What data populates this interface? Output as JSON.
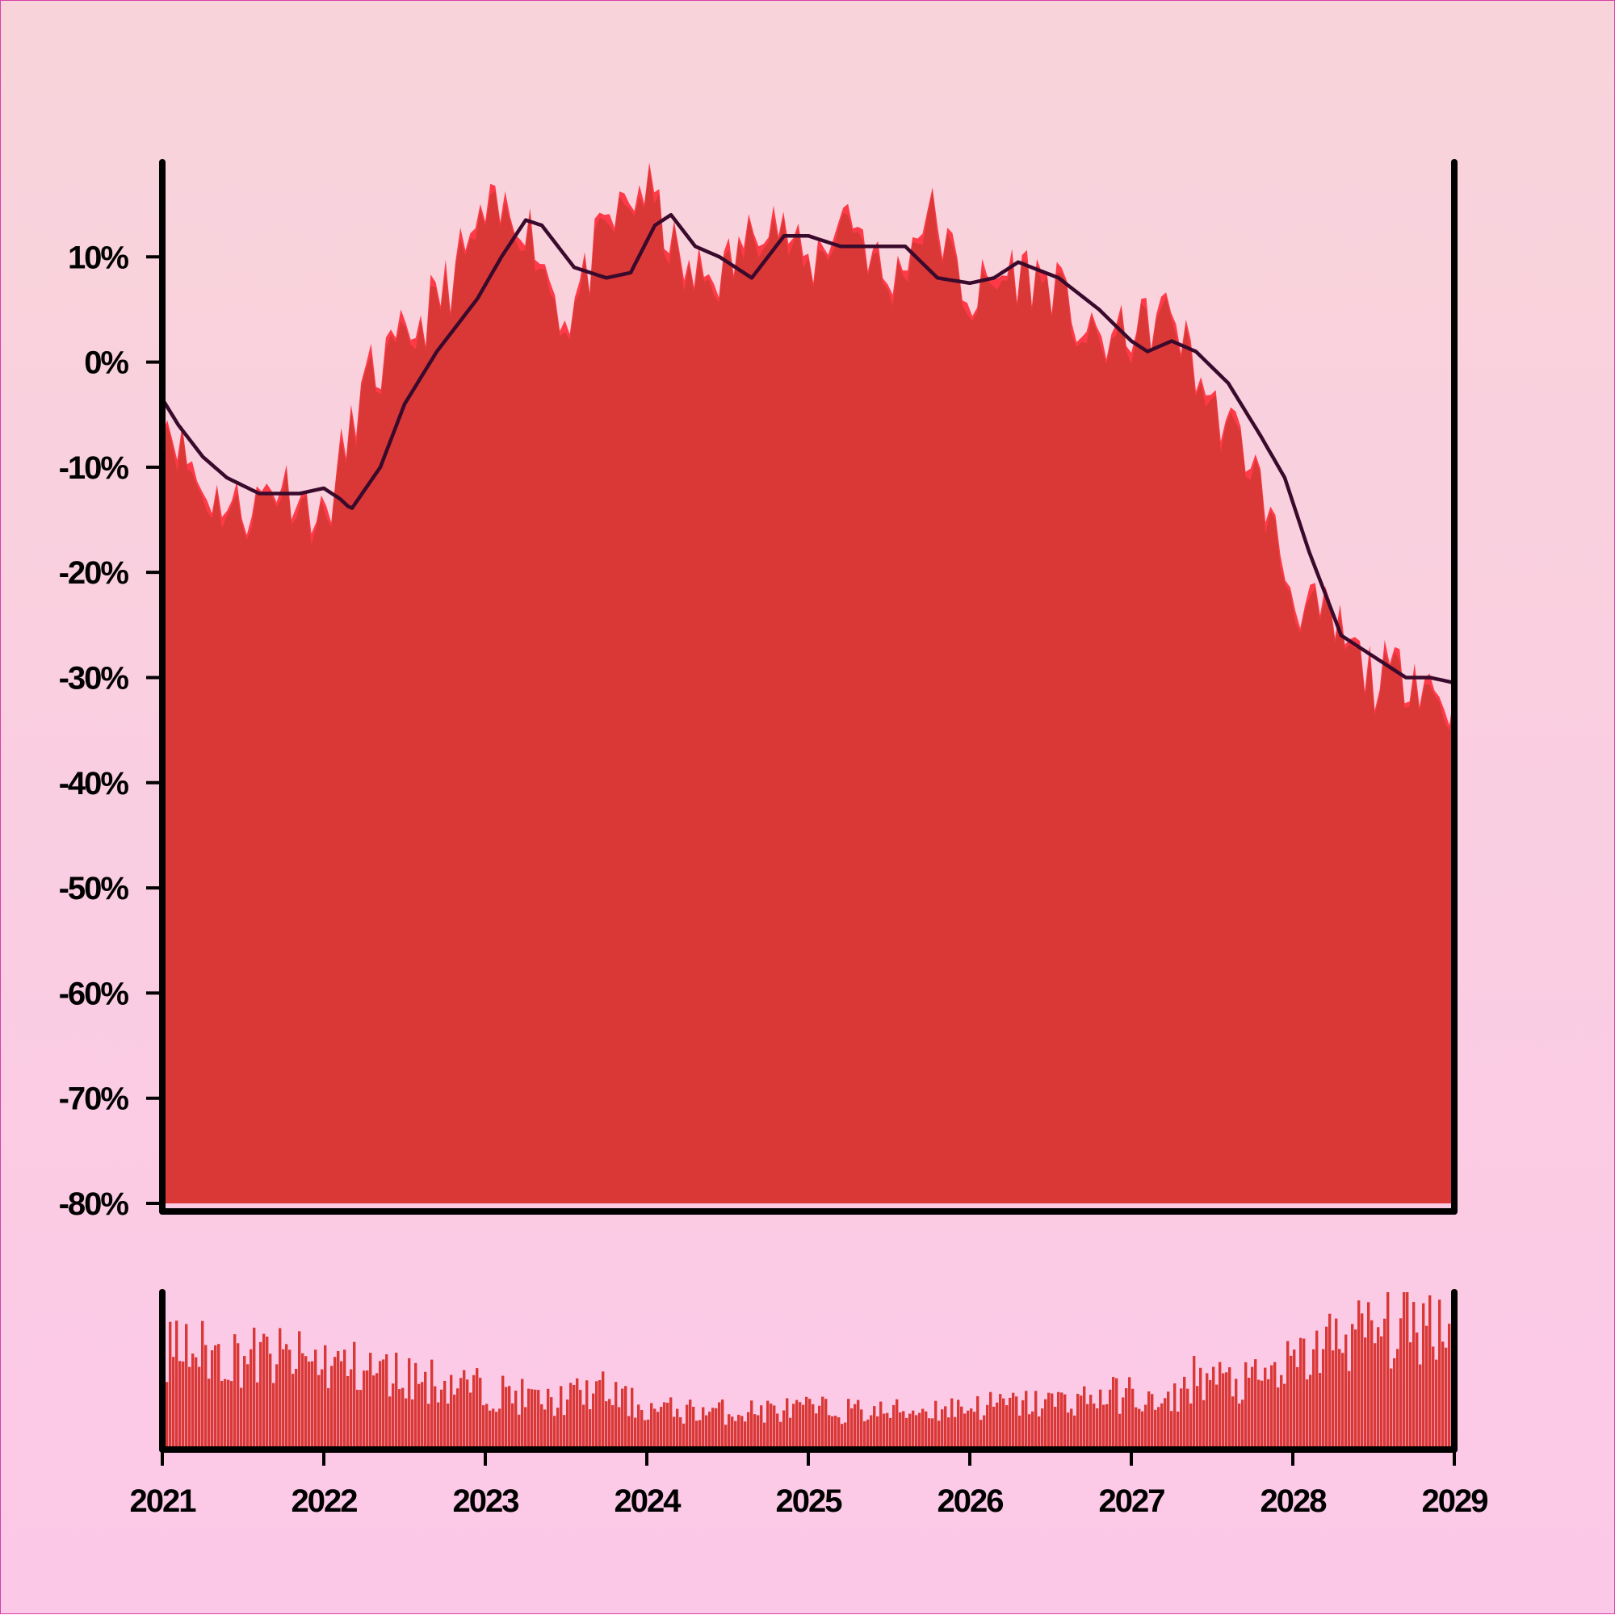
{
  "chart_data": {
    "type": "area",
    "title": "",
    "xlabel": "",
    "ylabel": "",
    "x_range": [
      2021,
      2029
    ],
    "ylim": [
      -80,
      19
    ],
    "grid": false,
    "legend": "none",
    "x_ticks": [
      "2021",
      "2022",
      "2023",
      "2024",
      "2025",
      "2026",
      "2027",
      "2028",
      "2029"
    ],
    "y_ticks": [
      "10%",
      "0%",
      "-10%",
      "-20%",
      "-30%",
      "-40%",
      "-50%",
      "-60%",
      "-70%",
      "-80%"
    ],
    "y_tick_values": [
      10,
      0,
      -10,
      -20,
      -30,
      -40,
      -50,
      -60,
      -70,
      -80
    ],
    "colors": {
      "area_fill": "#da3836",
      "area_highlight": "#ff3a48",
      "trend_line": "#3a0a2c",
      "axis": "#000000",
      "volume_bars": "#da3836"
    },
    "main_series": {
      "x": [
        2021.0,
        2021.25,
        2021.5,
        2021.75,
        2022.0,
        2022.25,
        2022.5,
        2022.75,
        2023.0,
        2023.25,
        2023.5,
        2023.75,
        2024.0,
        2024.25,
        2024.5,
        2024.75,
        2025.0,
        2025.25,
        2025.5,
        2025.75,
        2026.0,
        2026.25,
        2026.5,
        2026.75,
        2027.0,
        2027.25,
        2027.5,
        2027.75,
        2028.0,
        2028.25,
        2028.5,
        2028.75,
        2029.0
      ],
      "values": [
        -5,
        -13,
        -15,
        -12,
        -16,
        -3,
        1,
        6,
        13,
        13,
        3,
        12,
        16,
        7,
        8,
        14,
        8,
        14,
        6,
        14,
        5,
        8,
        7,
        1,
        2,
        4,
        -5,
        -10,
        -23,
        -26,
        -31,
        -30,
        -34
      ]
    },
    "trend_series": {
      "x": [
        2021.0,
        2021.1,
        2021.25,
        2021.4,
        2021.6,
        2021.85,
        2022.0,
        2022.1,
        2022.17,
        2022.35,
        2022.5,
        2022.7,
        2022.95,
        2023.1,
        2023.25,
        2023.35,
        2023.55,
        2023.75,
        2023.9,
        2024.05,
        2024.15,
        2024.3,
        2024.45,
        2024.65,
        2024.85,
        2025.0,
        2025.2,
        2025.45,
        2025.6,
        2025.8,
        2026.0,
        2026.15,
        2026.3,
        2026.55,
        2026.8,
        2027.0,
        2027.1,
        2027.25,
        2027.4,
        2027.6,
        2027.8,
        2027.95,
        2028.1,
        2028.3,
        2028.5,
        2028.7,
        2028.85,
        2029.0
      ],
      "values": [
        -3.5,
        -6,
        -9,
        -11,
        -12.5,
        -12.5,
        -12,
        -13,
        -14,
        -10,
        -4,
        1,
        6,
        10,
        13.5,
        13,
        9,
        8,
        8.5,
        13,
        14,
        11,
        10,
        8,
        12,
        12,
        11,
        11,
        11,
        8,
        7.5,
        8,
        9.5,
        8,
        5,
        2,
        1,
        2,
        1,
        -2,
        -7,
        -11,
        -18,
        -26,
        -28,
        -30,
        -30,
        -30.5
      ]
    },
    "volume_series": {
      "x": [
        2021.0,
        2021.5,
        2022.0,
        2022.5,
        2023.0,
        2023.4,
        2023.7,
        2024.0,
        2024.5,
        2025.0,
        2025.5,
        2026.0,
        2026.5,
        2027.0,
        2027.2,
        2027.4,
        2027.7,
        2028.0,
        2028.3,
        2028.6,
        2029.0
      ],
      "values": [
        75,
        70,
        65,
        55,
        45,
        35,
        45,
        30,
        28,
        30,
        28,
        32,
        35,
        42,
        30,
        55,
        48,
        62,
        85,
        90,
        100
      ]
    }
  }
}
